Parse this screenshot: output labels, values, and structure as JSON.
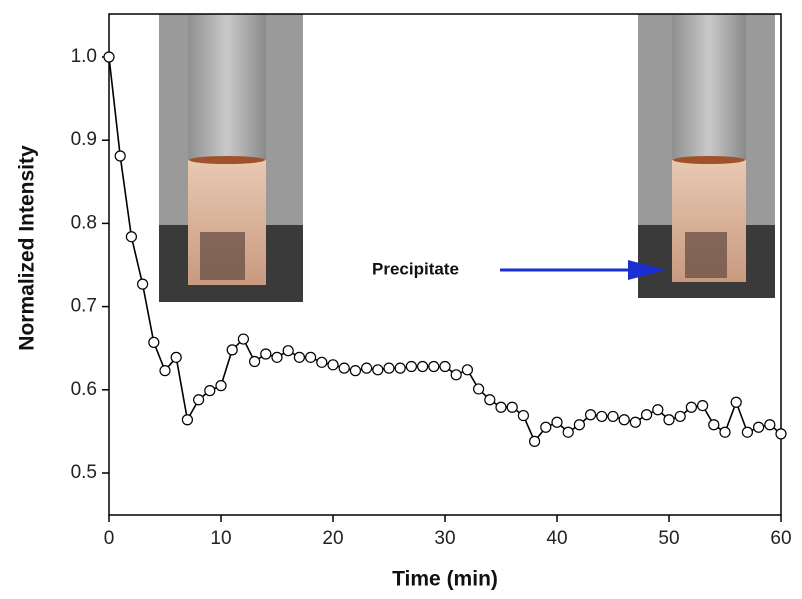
{
  "chart_data": {
    "type": "line",
    "x_label": "Time (min)",
    "y_label": "Normalized Intensity",
    "annotation": "Precipitate",
    "x": [
      0,
      1,
      2,
      3,
      4,
      5,
      6,
      7,
      8,
      9,
      10,
      11,
      12,
      13,
      14,
      15,
      16,
      17,
      18,
      19,
      20,
      21,
      22,
      23,
      24,
      25,
      26,
      27,
      28,
      29,
      30,
      31,
      32,
      33,
      34,
      35,
      36,
      37,
      38,
      39,
      40,
      41,
      42,
      43,
      44,
      45,
      46,
      47,
      48,
      49,
      50,
      51,
      52,
      53,
      54,
      55,
      56,
      57,
      58,
      59,
      60
    ],
    "series": [
      {
        "color": "#000000",
        "values": [
          1.0,
          0.881,
          0.784,
          0.727,
          0.657,
          0.623,
          0.639,
          0.564,
          0.588,
          0.599,
          0.605,
          0.648,
          0.661,
          0.634,
          0.643,
          0.639,
          0.647,
          0.639,
          0.639,
          0.633,
          0.63,
          0.626,
          0.623,
          0.626,
          0.624,
          0.626,
          0.626,
          0.628,
          0.628,
          0.628,
          0.628,
          0.618,
          0.624,
          0.601,
          0.588,
          0.579,
          0.579,
          0.569,
          0.538,
          0.555,
          0.561,
          0.549,
          0.558,
          0.57,
          0.568,
          0.568,
          0.564,
          0.561,
          0.57,
          0.576,
          0.564,
          0.568,
          0.579,
          0.581,
          0.558,
          0.549,
          0.585,
          0.549,
          0.555,
          0.558,
          0.547
        ]
      }
    ],
    "xlim": [
      0,
      60
    ],
    "xticks": [
      0,
      10,
      20,
      30,
      40,
      50,
      60
    ],
    "ylim": [
      0.4495,
      1.0517
    ],
    "yticks": [
      0.5,
      0.6,
      0.7,
      0.8,
      0.9,
      {
        "value": 1,
        "label": "1.0"
      }
    ],
    "marker": "open-circle"
  }
}
